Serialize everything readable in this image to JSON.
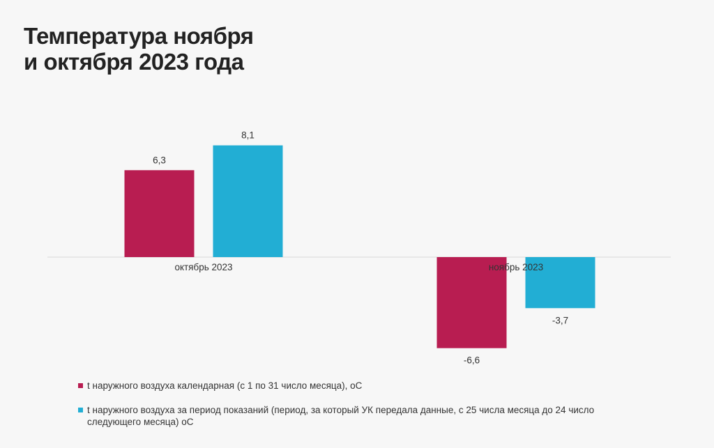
{
  "title_lines": [
    "Температура ноября",
    "и октября 2023 года"
  ],
  "chart_data": {
    "type": "bar",
    "title": "Температура ноября и октября 2023 года",
    "categories": [
      "октябрь 2023",
      "ноябрь 2023"
    ],
    "series": [
      {
        "name": "t наружного воздуха календарная (с 1 по 31 число месяца), oC",
        "color": "#b81d51",
        "values": [
          6.3,
          -6.6
        ],
        "labels": [
          "6,3",
          "-6,6"
        ]
      },
      {
        "name": "t наружного воздуха за период показаний (период, за который УК передала данные, с 25 числа месяца до 24 число следующего месяца)  oC",
        "color": "#22aed4",
        "values": [
          8.1,
          -3.7
        ],
        "labels": [
          "8,1",
          "-3,7"
        ]
      }
    ],
    "ylim": [
      -8,
      12
    ],
    "grid": false,
    "legend_position": "bottom-left"
  }
}
